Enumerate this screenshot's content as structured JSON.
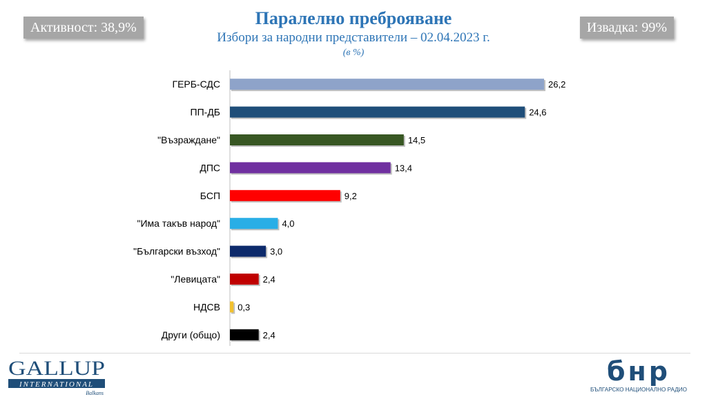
{
  "header": {
    "title": "Паралелно преброяване",
    "subtitle": "Избори за народни представители – 02.04.2023 г.",
    "unit": "(в %)",
    "turnout": "Активност: 38,9%",
    "sample": "Извадка: 99%"
  },
  "chart_data": {
    "type": "bar",
    "orientation": "horizontal",
    "title": "Паралелно преброяване",
    "subtitle": "Избори за народни представители – 02.04.2023 г.",
    "unit": "(в %)",
    "xlim": [
      0,
      30
    ],
    "categories": [
      "ГЕРБ-СДС",
      "ПП-ДБ",
      "\"Възраждане\"",
      "ДПС",
      "БСП",
      "\"Има такъв народ\"",
      "\"Български възход\"",
      "\"Левицата\"",
      "НДСВ",
      "Други (общо)"
    ],
    "values": [
      26.2,
      24.6,
      14.5,
      13.4,
      9.2,
      4.0,
      3.0,
      2.4,
      0.3,
      2.4
    ],
    "value_labels": [
      "26,2",
      "24,6",
      "14,5",
      "13,4",
      "9,2",
      "4,0",
      "3,0",
      "2,4",
      "0,3",
      "2,4"
    ],
    "colors": [
      "#8ea3c9",
      "#1f4e79",
      "#385723",
      "#7030a0",
      "#ff0000",
      "#29aee6",
      "#0d2a6b",
      "#c00000",
      "#f2c12e",
      "#000000"
    ]
  },
  "footer": {
    "gallup": {
      "name": "GALLUP",
      "sub": "INTERNATIONAL",
      "region": "Balkans"
    },
    "bnr": {
      "mark": "бнр",
      "caption": "БЪЛГАРСКО НАЦИОНАЛНО РАДИО"
    }
  }
}
